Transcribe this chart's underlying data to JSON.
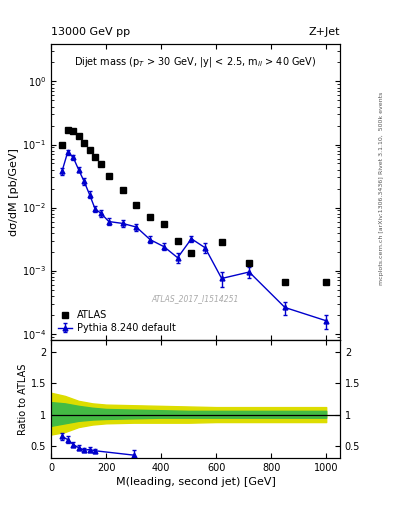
{
  "title_left": "13000 GeV pp",
  "title_right": "Z+Jet",
  "annotation": "Dijet mass (p$_T$ > 30 GeV, |y| < 2.5, m$_{ll}$ > 40 GeV)",
  "watermark": "ATLAS_2017_I1514251",
  "right_label_top": "Rivet 3.1.10,  500k events",
  "right_label_bot": "mcplots.cern.ch [arXiv:1306.3436]",
  "ylabel_main": "dσ/dM [pb/GeV]",
  "ylabel_ratio": "Ratio to ATLAS",
  "xlabel": "M(leading, second jet) [GeV]",
  "atlas_x": [
    40,
    60,
    80,
    100,
    120,
    140,
    160,
    180,
    210,
    260,
    310,
    360,
    410,
    460,
    510,
    620,
    720,
    850,
    1000
  ],
  "atlas_y": [
    0.1,
    0.17,
    0.165,
    0.135,
    0.105,
    0.082,
    0.063,
    0.049,
    0.032,
    0.019,
    0.011,
    0.007,
    0.0055,
    0.003,
    0.0019,
    0.0028,
    0.0013,
    0.00065,
    0.00065
  ],
  "pythia_x": [
    40,
    60,
    80,
    100,
    120,
    140,
    160,
    180,
    210,
    260,
    310,
    360,
    410,
    460,
    510,
    560,
    620,
    720,
    850,
    1000
  ],
  "pythia_y": [
    0.038,
    0.075,
    0.063,
    0.04,
    0.026,
    0.016,
    0.0095,
    0.0082,
    0.006,
    0.0056,
    0.0049,
    0.0031,
    0.0024,
    0.0016,
    0.0032,
    0.0023,
    0.00075,
    0.00095,
    0.00026,
    0.00016
  ],
  "pythia_yerr_lo": [
    0.005,
    0.007,
    0.006,
    0.004,
    0.003,
    0.002,
    0.001,
    0.001,
    0.0008,
    0.0007,
    0.0006,
    0.0004,
    0.0003,
    0.0003,
    0.0004,
    0.0004,
    0.0002,
    0.0002,
    6e-05,
    4e-05
  ],
  "pythia_yerr_hi": [
    0.005,
    0.007,
    0.006,
    0.004,
    0.003,
    0.002,
    0.001,
    0.001,
    0.0008,
    0.0007,
    0.0006,
    0.0004,
    0.0003,
    0.0003,
    0.0004,
    0.0004,
    0.0002,
    0.0002,
    6e-05,
    4e-05
  ],
  "ratio_x": [
    40,
    60,
    80,
    100,
    120,
    140,
    160,
    300
  ],
  "ratio_y": [
    0.65,
    0.6,
    0.52,
    0.47,
    0.43,
    0.44,
    0.42,
    0.35
  ],
  "ratio_yerr_lo": [
    0.06,
    0.05,
    0.04,
    0.035,
    0.03,
    0.04,
    0.03,
    0.12
  ],
  "ratio_yerr_hi": [
    0.06,
    0.05,
    0.04,
    0.035,
    0.03,
    0.04,
    0.03,
    0.08
  ],
  "band_x": [
    0,
    50,
    100,
    150,
    200,
    300,
    400,
    500,
    600,
    700,
    800,
    900,
    1000
  ],
  "yellow_lo": [
    0.68,
    0.72,
    0.8,
    0.84,
    0.86,
    0.87,
    0.87,
    0.87,
    0.88,
    0.88,
    0.88,
    0.88,
    0.88
  ],
  "yellow_hi": [
    1.35,
    1.3,
    1.22,
    1.18,
    1.16,
    1.15,
    1.14,
    1.13,
    1.12,
    1.12,
    1.12,
    1.12,
    1.12
  ],
  "green_lo": [
    0.82,
    0.86,
    0.9,
    0.92,
    0.93,
    0.94,
    0.95,
    0.95,
    0.95,
    0.95,
    0.95,
    0.95,
    0.95
  ],
  "green_hi": [
    1.2,
    1.18,
    1.14,
    1.11,
    1.09,
    1.08,
    1.07,
    1.06,
    1.06,
    1.06,
    1.06,
    1.06,
    1.06
  ],
  "ylim_main": [
    8e-05,
    4.0
  ],
  "ylim_ratio": [
    0.3,
    2.2
  ],
  "xlim": [
    0,
    1050
  ],
  "yticks_ratio": [
    0.5,
    1.0,
    1.5,
    2.0
  ],
  "data_color": "#000000",
  "pythia_color": "#0000cc",
  "green_color": "#44bb44",
  "yellow_color": "#dddd00",
  "background_color": "#ffffff"
}
